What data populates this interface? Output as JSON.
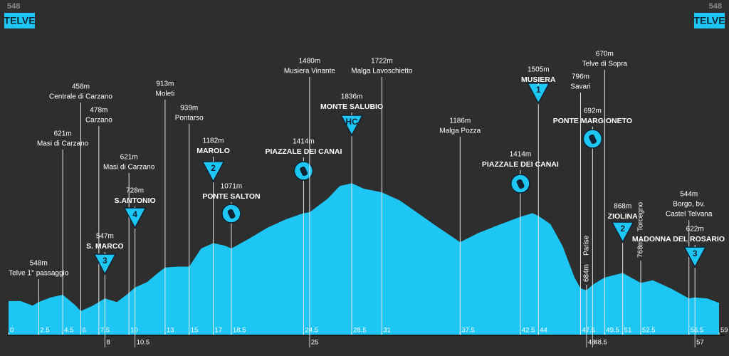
{
  "chart_data": {
    "type": "area",
    "color": "#1ec6f3",
    "start": {
      "altitude": 548,
      "name": "TELVE"
    },
    "finish": {
      "altitude": 548,
      "name": "TELVE"
    },
    "x": [
      0,
      1,
      2,
      2.5,
      3.5,
      4.5,
      5.5,
      6,
      7,
      7.5,
      8,
      9,
      10,
      10.5,
      11.5,
      12.5,
      13,
      14,
      15,
      16,
      17,
      18,
      18.5,
      20,
      21.5,
      23,
      24.5,
      25,
      26.5,
      27.5,
      28.5,
      29.5,
      31,
      32.5,
      34,
      35.5,
      37.5,
      39,
      40.5,
      42.5,
      43.5,
      44,
      45,
      46,
      47,
      47.5,
      48,
      48.5,
      49.5,
      51,
      52.5,
      53.5,
      55,
      56.5,
      57,
      58,
      59
    ],
    "values": [
      540,
      540,
      490,
      530,
      580,
      610,
      500,
      430,
      490,
      530,
      570,
      530,
      630,
      690,
      750,
      860,
      910,
      920,
      920,
      1120,
      1180,
      1150,
      1120,
      1230,
      1350,
      1440,
      1510,
      1520,
      1670,
      1810,
      1840,
      1780,
      1740,
      1650,
      1510,
      1370,
      1190,
      1290,
      1370,
      1470,
      1510,
      1480,
      1390,
      1150,
      800,
      680,
      660,
      720,
      800,
      850,
      740,
      770,
      680,
      570,
      580,
      570,
      520
    ],
    "xlim": [
      0,
      59
    ],
    "ylim": [
      170,
      2000
    ],
    "xticks": [
      0,
      2.5,
      4.5,
      6,
      7.5,
      8,
      10,
      10.5,
      13,
      15,
      17,
      18.5,
      24.5,
      25,
      28.5,
      31,
      37.5,
      42.5,
      44,
      47.5,
      48,
      48.5,
      49.5,
      51,
      52.5,
      56.5,
      57,
      59
    ],
    "waypoints": [
      {
        "km": 2.5,
        "altitude": 548,
        "altitude_label": "548m",
        "name": [
          "Telve 1° passaggio"
        ]
      },
      {
        "km": 4.5,
        "altitude": 621,
        "altitude_label": "621m",
        "name": [
          "Masi di Carzano"
        ]
      },
      {
        "km": 6,
        "altitude": 458,
        "altitude_label": "458m",
        "name": [
          "Centrale di Carzano"
        ]
      },
      {
        "km": 7.5,
        "altitude": 478,
        "altitude_label": "478m",
        "name": [
          "Carzano"
        ]
      },
      {
        "km": 8,
        "altitude": 547,
        "altitude_label": "547m",
        "name": [
          "S. MARCO"
        ],
        "climb": "3"
      },
      {
        "km": 10,
        "altitude": 621,
        "altitude_label": "621m",
        "name": [
          "Masi di Carzano"
        ]
      },
      {
        "km": 10.5,
        "altitude": 728,
        "altitude_label": "728m",
        "name": [
          "S.ANTONIO"
        ],
        "climb": "4"
      },
      {
        "km": 13,
        "altitude": 913,
        "altitude_label": "913m",
        "name": [
          "Moleti"
        ]
      },
      {
        "km": 15,
        "altitude": 939,
        "altitude_label": "939m",
        "name": [
          "Pontarso"
        ]
      },
      {
        "km": 17,
        "altitude": 1182,
        "altitude_label": "1182m",
        "name": [
          "MAROLO"
        ],
        "climb": "2"
      },
      {
        "km": 18.5,
        "altitude": 1071,
        "altitude_label": "1071m",
        "name": [
          "PONTE SALTON"
        ],
        "marker": "circle"
      },
      {
        "km": 24.5,
        "altitude": 1414,
        "altitude_label": "1414m",
        "name": [
          "PIAZZALE DEI CANAI"
        ],
        "marker": "circle"
      },
      {
        "km": 25,
        "altitude": 1480,
        "altitude_label": "1480m",
        "name": [
          "Musiera Vinante"
        ]
      },
      {
        "km": 28.5,
        "altitude": 1836,
        "altitude_label": "1836m",
        "name": [
          "MONTE SALUBIO"
        ],
        "climb": "HC"
      },
      {
        "km": 31,
        "altitude": 1722,
        "altitude_label": "1722m",
        "name": [
          "Malga Lavoschietto"
        ]
      },
      {
        "km": 37.5,
        "altitude": 1186,
        "altitude_label": "1186m",
        "name": [
          "Malga Pozza"
        ]
      },
      {
        "km": 42.5,
        "altitude": 1414,
        "altitude_label": "1414m",
        "name": [
          "PIAZZALE DEI CANAI"
        ],
        "marker": "circle"
      },
      {
        "km": 44,
        "altitude": 1505,
        "altitude_label": "1505m",
        "name": [
          "MUSIERA"
        ],
        "climb": "1"
      },
      {
        "km": 47.5,
        "altitude": 796,
        "altitude_label": "796m",
        "name": [
          "Savari"
        ]
      },
      {
        "km": 48,
        "altitude": 684,
        "altitude_label": "684m",
        "name": [
          "Parise"
        ],
        "vertical": true
      },
      {
        "km": 48.5,
        "altitude": 692,
        "altitude_label": "692m",
        "name": [
          "PONTE MARGIONETO"
        ],
        "marker": "circle"
      },
      {
        "km": 49.5,
        "altitude": 670,
        "altitude_label": "670m",
        "name": [
          "Telve di Sopra"
        ]
      },
      {
        "km": 51,
        "altitude": 868,
        "altitude_label": "868m",
        "name": [
          "ZIOLINA"
        ],
        "climb": "2"
      },
      {
        "km": 52.5,
        "altitude": 768,
        "altitude_label": "768m",
        "name": [
          "Torcegno"
        ],
        "vertical": true
      },
      {
        "km": 56.5,
        "altitude": 544,
        "altitude_label": "544m",
        "name": [
          "Borgo, bv.",
          "Castel Telvana"
        ]
      },
      {
        "km": 57,
        "altitude": 622,
        "altitude_label": "622m",
        "name": [
          "MADONNA DEL ROSARIO"
        ],
        "climb": "3"
      }
    ]
  }
}
